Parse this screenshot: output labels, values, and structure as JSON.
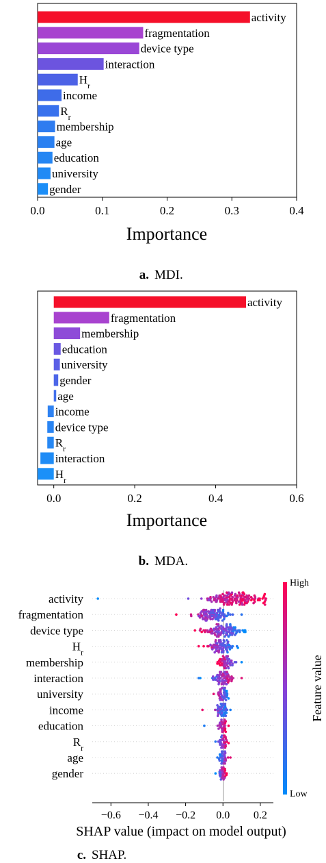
{
  "chart_data": [
    {
      "type": "bar",
      "orientation": "horizontal",
      "caption_letter": "a.",
      "caption_text": "MDI.",
      "xlabel": "Importance",
      "xlim": [
        0.0,
        0.4
      ],
      "xticks": [
        "0.0",
        "0.1",
        "0.2",
        "0.3",
        "0.4"
      ],
      "categories": [
        "activity",
        "fragmentation",
        "device type",
        "interaction",
        "H_r",
        "income",
        "R_r",
        "membership",
        "age",
        "education",
        "university",
        "gender"
      ],
      "values": [
        0.328,
        0.163,
        0.157,
        0.102,
        0.062,
        0.037,
        0.033,
        0.027,
        0.026,
        0.023,
        0.02,
        0.016
      ],
      "colors": [
        "#f5102a",
        "#a843cf",
        "#9a47d6",
        "#6c54df",
        "#4d62e6",
        "#3e6ce9",
        "#3871ed",
        "#2e7cf0",
        "#2a80f1",
        "#2586f3",
        "#218af5",
        "#1c8ef7"
      ]
    },
    {
      "type": "bar",
      "orientation": "horizontal",
      "caption_letter": "b.",
      "caption_text": "MDA.",
      "xlabel": "Importance",
      "xlim": [
        -0.04,
        0.6
      ],
      "xticks": [
        "0.0",
        "0.2",
        "0.4",
        "0.6"
      ],
      "categories": [
        "activity",
        "fragmentation",
        "membership",
        "education",
        "university",
        "gender",
        "age",
        "income",
        "device type",
        "R_r",
        "interaction",
        "H_r"
      ],
      "values": [
        0.475,
        0.137,
        0.065,
        0.017,
        0.015,
        0.011,
        0.006,
        -0.015,
        -0.016,
        -0.016,
        -0.033,
        -0.04
      ],
      "colors": [
        "#f5102a",
        "#a843cf",
        "#8e4bd8",
        "#6a58e2",
        "#5b5fe6",
        "#4c66e8",
        "#4270ec",
        "#2e82f2",
        "#2a85f3",
        "#2788f4",
        "#1f8cf6",
        "#1b90f8"
      ]
    },
    {
      "type": "scatter",
      "subtype": "shap-beeswarm",
      "caption_letter": "c.",
      "caption_text": "SHAP.",
      "xlabel": "SHAP value (impact on model output)",
      "xlim": [
        -0.7,
        0.27
      ],
      "xticks": [
        "−0.6",
        "−0.4",
        "−0.2",
        "0.0",
        "0.2"
      ],
      "categories": [
        "activity",
        "fragmentation",
        "device type",
        "H_r",
        "membership",
        "interaction",
        "university",
        "income",
        "education",
        "R_r",
        "age",
        "gender"
      ],
      "colorbar": {
        "label": "Feature value",
        "high": "High",
        "low": "Low",
        "high_color": "#ff0052",
        "mid_color": "#8a3fd6",
        "low_color": "#008bfb"
      },
      "features": [
        {
          "min": -0.67,
          "max": 0.23,
          "center": 0.06,
          "spread": 0.09,
          "count": 150,
          "high_side": "positive"
        },
        {
          "min": -0.25,
          "max": 0.1,
          "center": -0.05,
          "spread": 0.05,
          "count": 95,
          "high_side": "negative"
        },
        {
          "min": -0.15,
          "max": 0.12,
          "center": 0.0,
          "spread": 0.05,
          "count": 110,
          "high_side": "negative"
        },
        {
          "min": -0.13,
          "max": 0.08,
          "center": -0.01,
          "spread": 0.03,
          "count": 85,
          "high_side": "negative"
        },
        {
          "min": -0.03,
          "max": 0.1,
          "center": 0.01,
          "spread": 0.02,
          "count": 70,
          "high_side": "negative"
        },
        {
          "min": -0.13,
          "max": 0.1,
          "center": 0.0,
          "spread": 0.03,
          "count": 90,
          "high_side": "positive"
        },
        {
          "min": -0.05,
          "max": 0.03,
          "center": 0.0,
          "spread": 0.012,
          "count": 60,
          "high_side": "negative"
        },
        {
          "min": -0.11,
          "max": 0.04,
          "center": -0.005,
          "spread": 0.015,
          "count": 65,
          "high_side": "negative"
        },
        {
          "min": -0.1,
          "max": 0.03,
          "center": 0.0,
          "spread": 0.012,
          "count": 55,
          "high_side": "positive"
        },
        {
          "min": -0.04,
          "max": 0.03,
          "center": 0.0,
          "spread": 0.01,
          "count": 55,
          "high_side": "positive"
        },
        {
          "min": -0.03,
          "max": 0.04,
          "center": 0.0,
          "spread": 0.01,
          "count": 50,
          "high_side": "positive"
        },
        {
          "min": -0.04,
          "max": 0.02,
          "center": 0.0,
          "spread": 0.008,
          "count": 45,
          "high_side": "positive"
        }
      ]
    }
  ]
}
